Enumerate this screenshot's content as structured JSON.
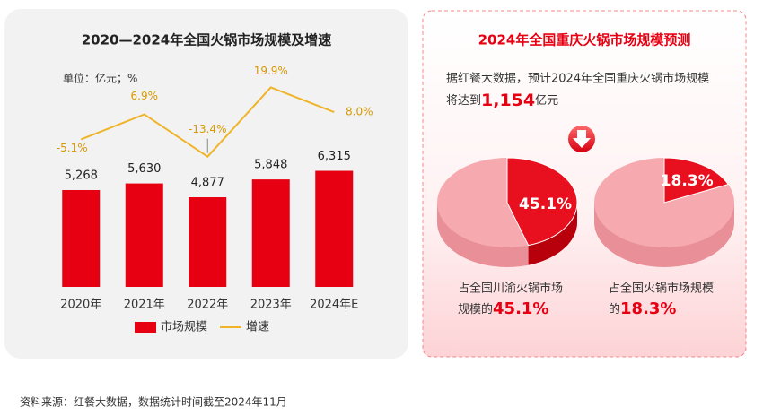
{
  "chart_data": [
    {
      "type": "bar",
      "title": "2020—2024年全国火锅市场规模及增速",
      "unit": "单位：亿元；%",
      "categories": [
        "2020年",
        "2021年",
        "2022年",
        "2023年",
        "2024年E"
      ],
      "series": [
        {
          "name": "市场规模",
          "color": "#e60012",
          "values": [
            5268,
            5630,
            4877,
            5848,
            6315
          ],
          "value_labels": [
            "5,268",
            "5,630",
            "4,877",
            "5,848",
            "6,315"
          ]
        },
        {
          "name": "增速",
          "type": "line",
          "axis": "y2",
          "color": "#f0b429",
          "values": [
            -5.1,
            6.9,
            -13.4,
            19.9,
            8.0
          ],
          "value_labels": [
            "-5.1%",
            "6.9%",
            "-13.4%",
            "19.9%",
            "8.0%"
          ]
        }
      ],
      "ylim": [
        0,
        8000
      ],
      "y2lim": [
        -20,
        30
      ]
    },
    {
      "type": "pie",
      "values": [
        45.1
      ],
      "value_labels": [
        "45.1%"
      ],
      "color": "#e8101e",
      "caption": [
        "占全国川渝火锅市场",
        "规模的"
      ]
    },
    {
      "type": "pie",
      "values": [
        18.3
      ],
      "value_labels": [
        "18.3%"
      ],
      "color": "#e8101e",
      "caption": [
        "占全国火锅市场规模",
        "的"
      ]
    }
  ],
  "forecast": {
    "title": "2024年全国重庆火锅市场规模预测",
    "line1": "据红餐大数据，预计2024年全国重庆火锅市场规模",
    "prefix": "将达到",
    "amount": "1,154",
    "unit": "亿元"
  },
  "source": "资料来源：红餐大数据，数据统计时间截至2024年11月"
}
